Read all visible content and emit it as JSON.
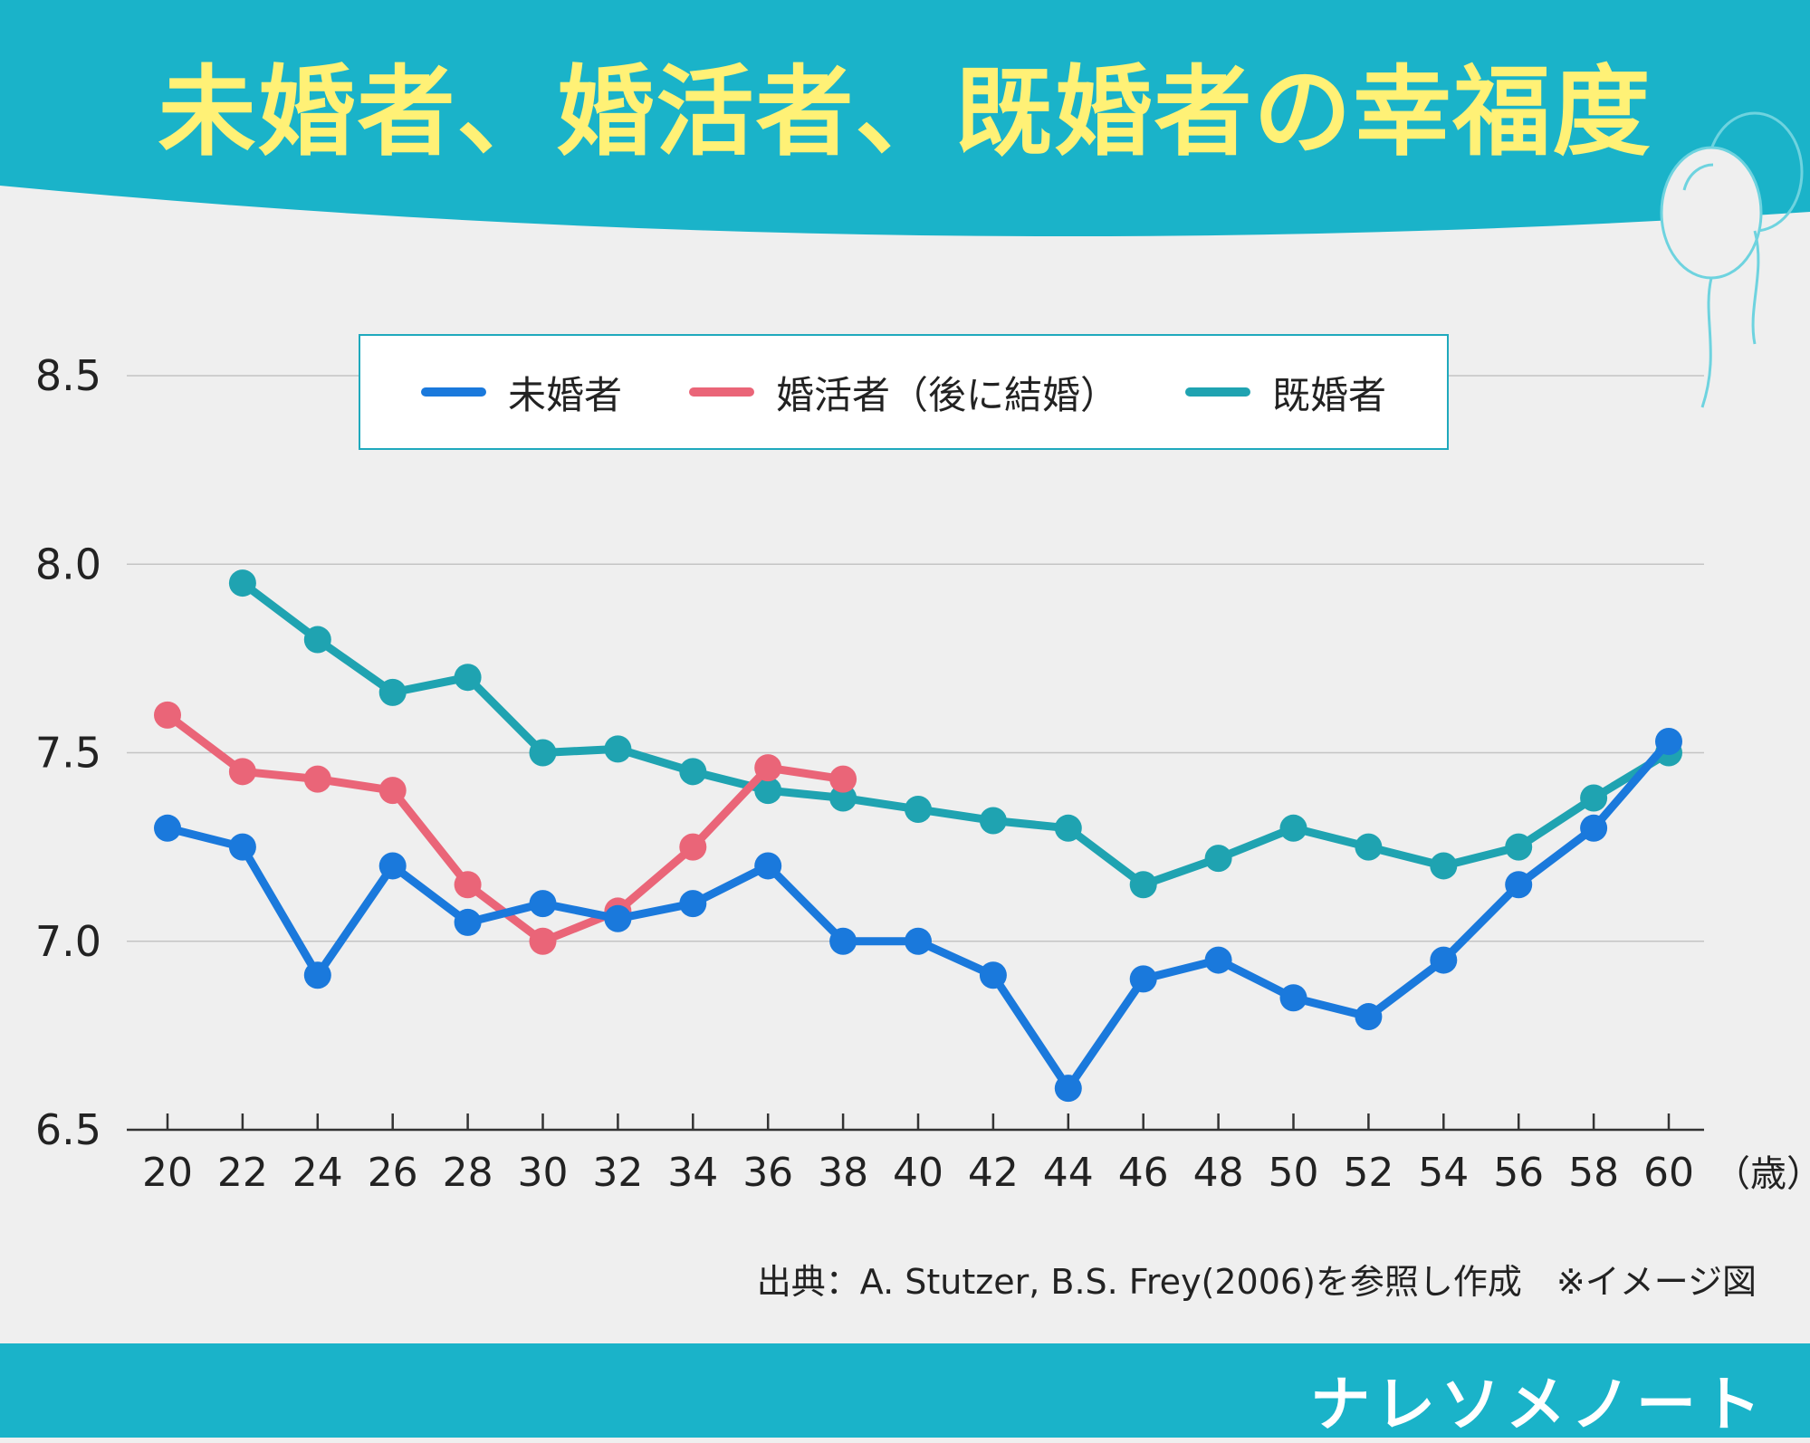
{
  "title": "未婚者、婚活者、既婚者の幸福度",
  "source_note": "出典：A. Stutzer, B.S. Frey(2006)を参照し作成　※イメージ図",
  "brand": "ナレソメノート",
  "colors": {
    "header": "#1ab3c9",
    "title_text": "#fff176",
    "unmarried": "#1a79dc",
    "konkatsu": "#ea6578",
    "married": "#1fa3b1"
  },
  "legend": [
    {
      "label": "未婚者",
      "color": "#1a79dc"
    },
    {
      "label": "婚活者（後に結婚）",
      "color": "#ea6578"
    },
    {
      "label": "既婚者",
      "color": "#1fa3b1"
    }
  ],
  "chart_data": {
    "type": "line",
    "title": "未婚者、婚活者、既婚者の幸福度",
    "xlabel": "（歳）",
    "ylabel": "",
    "ylim": [
      6.5,
      8.5
    ],
    "y_ticks": [
      "8.5",
      "8.0",
      "7.5",
      "7.0",
      "6.5"
    ],
    "y_tick_values": [
      8.5,
      8.0,
      7.5,
      7.0,
      6.5
    ],
    "x": [
      20,
      22,
      24,
      26,
      28,
      30,
      32,
      34,
      36,
      38,
      40,
      42,
      44,
      46,
      48,
      50,
      52,
      54,
      56,
      58,
      60
    ],
    "series": [
      {
        "name": "未婚者",
        "color": "#1a79dc",
        "values": [
          7.3,
          7.25,
          6.91,
          7.2,
          7.05,
          7.1,
          7.06,
          7.1,
          7.2,
          7.0,
          7.0,
          6.91,
          6.61,
          6.9,
          6.95,
          6.85,
          6.8,
          6.95,
          7.15,
          7.3,
          7.53
        ]
      },
      {
        "name": "婚活者（後に結婚）",
        "color": "#ea6578",
        "values": [
          7.6,
          7.45,
          7.43,
          7.4,
          7.15,
          7.0,
          7.08,
          7.25,
          7.46,
          7.43,
          null,
          null,
          null,
          null,
          null,
          null,
          null,
          null,
          null,
          null,
          null
        ]
      },
      {
        "name": "既婚者",
        "color": "#1fa3b1",
        "values": [
          null,
          7.95,
          7.8,
          7.66,
          7.7,
          7.5,
          7.51,
          7.45,
          7.4,
          7.38,
          7.35,
          7.32,
          7.3,
          7.15,
          7.22,
          7.3,
          7.25,
          7.2,
          7.25,
          7.38,
          7.5
        ]
      }
    ],
    "grid": true
  }
}
